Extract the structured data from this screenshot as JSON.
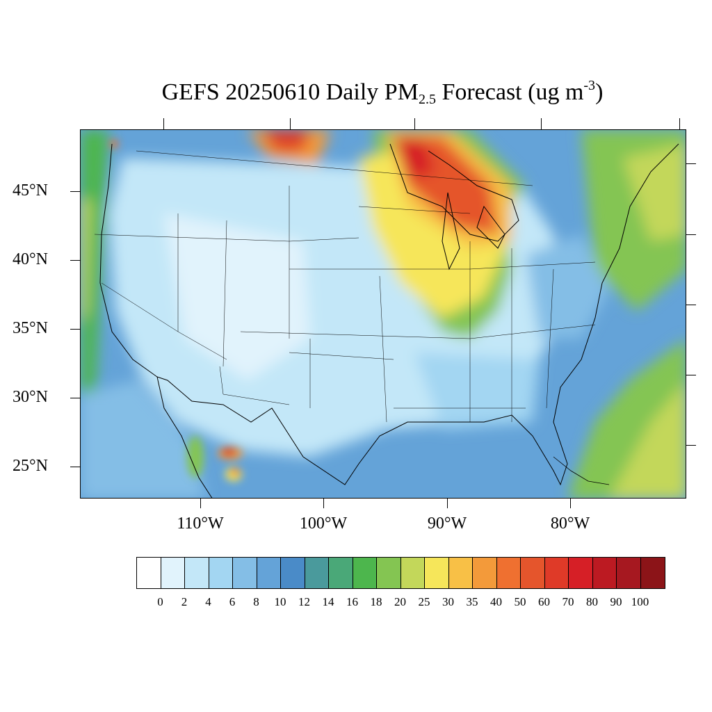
{
  "title": {
    "main": "GEFS 20250610 Daily PM",
    "sub": "2.5",
    "rest": " Forecast (ug m",
    "sup": "-3",
    "close": ")"
  },
  "axes": {
    "lat_labels": [
      "45°N",
      "40°N",
      "35°N",
      "30°N",
      "25°N"
    ],
    "lon_labels": [
      "110°W",
      "100°W",
      "90°W",
      "80°W"
    ]
  },
  "colorbar": {
    "colors": [
      "#ffffff",
      "#e1f3fc",
      "#c3e7f8",
      "#a3d6f2",
      "#84bee6",
      "#64a3d8",
      "#4a8bc8",
      "#4a9a9c",
      "#4aa878",
      "#4db64d",
      "#84c552",
      "#c3d75a",
      "#f6e65a",
      "#f8c046",
      "#f39a3a",
      "#ef7030",
      "#e5552c",
      "#df3a28",
      "#d61f26",
      "#bc1a22",
      "#a61820",
      "#8c1418"
    ],
    "labels": [
      "0",
      "2",
      "4",
      "6",
      "8",
      "10",
      "12",
      "14",
      "16",
      "18",
      "20",
      "25",
      "30",
      "35",
      "40",
      "50",
      "60",
      "70",
      "80",
      "90",
      "100"
    ]
  }
}
